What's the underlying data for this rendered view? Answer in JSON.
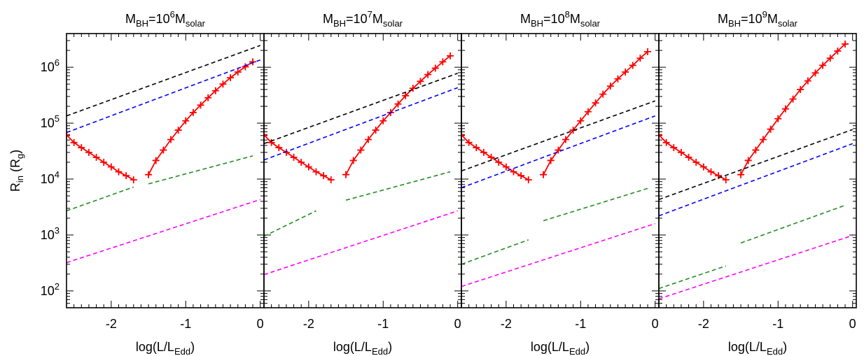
{
  "chart_data": {
    "type": "line",
    "shared_y_axis": {
      "label_main": "R",
      "label_sub": "in",
      "label_units_open": " (R",
      "label_units_sub": "g",
      "label_units_close": ")",
      "scale": "log",
      "ylim": [
        50,
        4000000
      ],
      "ticks": [
        {
          "value": 100,
          "base": "10",
          "exp": "2"
        },
        {
          "value": 1000,
          "base": "10",
          "exp": "3"
        },
        {
          "value": 10000,
          "base": "10",
          "exp": "4"
        },
        {
          "value": 100000,
          "base": "10",
          "exp": "5"
        },
        {
          "value": 1000000,
          "base": "10",
          "exp": "6"
        }
      ]
    },
    "shared_x_axis": {
      "label_main": "log(L/L",
      "label_sub": "Edd",
      "label_close": ")",
      "xlim": [
        -2.6,
        0.05
      ],
      "ticks": [
        -2,
        -1,
        0
      ],
      "tick_labels": [
        "-2",
        "-1",
        "0"
      ]
    },
    "panels": [
      {
        "title_pre": "M",
        "title_sub": "BH",
        "title_mid": "=10",
        "title_sup": "6",
        "title_m": "M",
        "title_sub2": "solar",
        "series": [
          {
            "color": "#ff0000",
            "style": "solid-plus",
            "x": [
              -2.6,
              -2.5,
              -2.4,
              -2.3,
              -2.2,
              -2.1,
              -2.0,
              -1.9,
              -1.8,
              -1.7
            ],
            "y": [
              62000,
              45000,
              36500,
              30000,
              24500,
              20000,
              16500,
              13500,
              11500,
              9700
            ]
          },
          {
            "color": "#ff0000",
            "style": "solid-plus",
            "x": [
              -1.5,
              -1.4,
              -1.3,
              -1.2,
              -1.1,
              -1.0,
              -0.9,
              -0.8,
              -0.7,
              -0.6,
              -0.5,
              -0.4,
              -0.3,
              -0.2,
              -0.1
            ],
            "y": [
              12000,
              21500,
              33000,
              51000,
              75000,
              110000,
              155000,
              210000,
              285000,
              380000,
              500000,
              650000,
              820000,
              1020000,
              1250000
            ]
          },
          {
            "color": "#000000",
            "style": "dashed",
            "x": [
              -2.6,
              0.0
            ],
            "y": [
              135000,
              2450000
            ]
          },
          {
            "color": "#0000ff",
            "style": "dashed",
            "x": [
              -2.6,
              0.0
            ],
            "y": [
              68000,
              1350000
            ]
          },
          {
            "color": "#228b22",
            "style": "dashed",
            "x": [
              -2.6,
              -1.7
            ],
            "y": [
              2700,
              7200
            ]
          },
          {
            "color": "#228b22",
            "style": "dashed",
            "x": [
              -1.5,
              -0.1
            ],
            "y": [
              8200,
              26000
            ]
          },
          {
            "color": "#ff00ff",
            "style": "dashed",
            "x": [
              -2.6,
              0.0
            ],
            "y": [
              320,
              4300
            ]
          }
        ]
      },
      {
        "title_pre": "M",
        "title_sub": "BH",
        "title_mid": "=10",
        "title_sup": "7",
        "title_m": "M",
        "title_sub2": "solar",
        "series": [
          {
            "color": "#ff0000",
            "style": "solid-plus",
            "x": [
              -2.6,
              -2.5,
              -2.4,
              -2.3,
              -2.2,
              -2.1,
              -2.0,
              -1.9,
              -1.8,
              -1.7
            ],
            "y": [
              62000,
              45000,
              36500,
              30000,
              24500,
              20000,
              16500,
              13500,
              11500,
              9700
            ]
          },
          {
            "color": "#ff0000",
            "style": "solid-plus",
            "x": [
              -1.5,
              -1.4,
              -1.3,
              -1.2,
              -1.1,
              -1.0,
              -0.9,
              -0.8,
              -0.7,
              -0.6,
              -0.5,
              -0.4,
              -0.3,
              -0.2,
              -0.1
            ],
            "y": [
              12000,
              21500,
              33000,
              51000,
              75000,
              110000,
              155000,
              220000,
              310000,
              420000,
              560000,
              740000,
              960000,
              1250000,
              1600000
            ]
          },
          {
            "color": "#000000",
            "style": "dashed",
            "x": [
              -2.6,
              0.0
            ],
            "y": [
              43000,
              780000
            ]
          },
          {
            "color": "#0000ff",
            "style": "dashed",
            "x": [
              -2.6,
              0.0
            ],
            "y": [
              22000,
              430000
            ]
          },
          {
            "color": "#228b22",
            "style": "dashed",
            "x": [
              -2.6,
              -1.9
            ],
            "y": [
              950,
              2700
            ]
          },
          {
            "color": "#228b22",
            "style": "dashed",
            "x": [
              -1.5,
              -0.1
            ],
            "y": [
              4200,
              13500
            ]
          },
          {
            "color": "#ff00ff",
            "style": "dashed",
            "x": [
              -2.6,
              0.0
            ],
            "y": [
              195,
              2700
            ]
          }
        ]
      },
      {
        "title_pre": "M",
        "title_sub": "BH",
        "title_mid": "=10",
        "title_sup": "8",
        "title_m": "M",
        "title_sub2": "solar",
        "series": [
          {
            "color": "#ff0000",
            "style": "solid-plus",
            "x": [
              -2.6,
              -2.5,
              -2.4,
              -2.3,
              -2.2,
              -2.1,
              -2.0,
              -1.9,
              -1.8,
              -1.7
            ],
            "y": [
              62000,
              45000,
              36500,
              30000,
              24500,
              20000,
              16500,
              13500,
              11500,
              9700
            ]
          },
          {
            "color": "#ff0000",
            "style": "solid-plus",
            "x": [
              -1.5,
              -1.4,
              -1.3,
              -1.2,
              -1.1,
              -1.0,
              -0.9,
              -0.8,
              -0.7,
              -0.6,
              -0.5,
              -0.4,
              -0.3,
              -0.2,
              -0.1
            ],
            "y": [
              12000,
              21500,
              33000,
              51000,
              75000,
              110000,
              160000,
              230000,
              330000,
              460000,
              620000,
              820000,
              1080000,
              1450000,
              1900000
            ]
          },
          {
            "color": "#000000",
            "style": "dashed",
            "x": [
              -2.6,
              0.0
            ],
            "y": [
              14000,
              250000
            ]
          },
          {
            "color": "#0000ff",
            "style": "dashed",
            "x": [
              -2.6,
              0.0
            ],
            "y": [
              7000,
              135000
            ]
          },
          {
            "color": "#228b22",
            "style": "dashed",
            "x": [
              -2.6,
              -1.7
            ],
            "y": [
              300,
              820
            ]
          },
          {
            "color": "#228b22",
            "style": "dashed",
            "x": [
              -1.5,
              -0.1
            ],
            "y": [
              1800,
              6800
            ]
          },
          {
            "color": "#ff00ff",
            "style": "dashed",
            "x": [
              -2.6,
              0.0
            ],
            "y": [
              120,
              1600
            ]
          }
        ]
      },
      {
        "title_pre": "M",
        "title_sub": "BH",
        "title_mid": "=10",
        "title_sup": "9",
        "title_m": "M",
        "title_sub2": "solar",
        "series": [
          {
            "color": "#ff0000",
            "style": "solid-plus",
            "x": [
              -2.6,
              -2.5,
              -2.4,
              -2.3,
              -2.2,
              -2.1,
              -2.0,
              -1.9,
              -1.8,
              -1.7
            ],
            "y": [
              62000,
              45000,
              36500,
              30000,
              24500,
              20000,
              16500,
              13500,
              11500,
              9700
            ]
          },
          {
            "color": "#ff0000",
            "style": "solid-plus",
            "x": [
              -1.5,
              -1.4,
              -1.3,
              -1.2,
              -1.1,
              -1.0,
              -0.9,
              -0.8,
              -0.7,
              -0.6,
              -0.5,
              -0.4,
              -0.3,
              -0.2,
              -0.1
            ],
            "y": [
              12000,
              21500,
              33000,
              51000,
              78000,
              120000,
              180000,
              270000,
              400000,
              570000,
              790000,
              1080000,
              1450000,
              1950000,
              2600000
            ]
          },
          {
            "color": "#000000",
            "style": "dashed",
            "x": [
              -2.6,
              0.0
            ],
            "y": [
              4300,
              77000
            ]
          },
          {
            "color": "#0000ff",
            "style": "dashed",
            "x": [
              -2.6,
              0.0
            ],
            "y": [
              2200,
              43000
            ]
          },
          {
            "color": "#228b22",
            "style": "dashed",
            "x": [
              -2.6,
              -1.7
            ],
            "y": [
              110,
              280
            ]
          },
          {
            "color": "#228b22",
            "style": "dashed",
            "x": [
              -1.5,
              -0.1
            ],
            "y": [
              720,
              3400
            ]
          },
          {
            "color": "#ff00ff",
            "style": "dashed",
            "x": [
              -2.6,
              0.0
            ],
            "y": [
              72,
              980
            ]
          }
        ]
      }
    ]
  }
}
